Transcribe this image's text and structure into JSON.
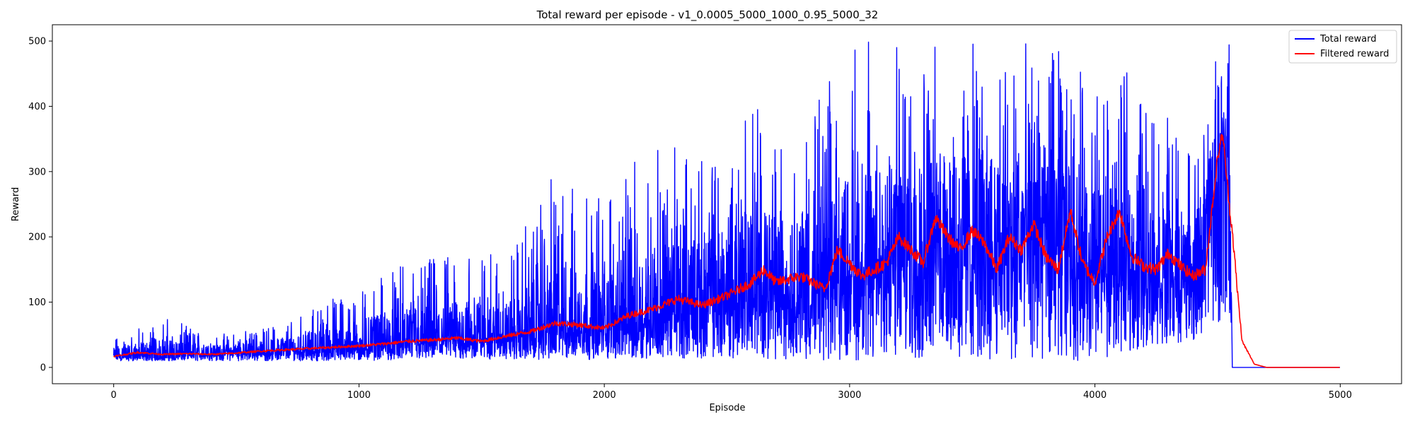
{
  "chart_data": {
    "type": "line",
    "title": "Total reward per episode - v1_0.0005_5000_1000_0.95_5000_32",
    "xlabel": "Episode",
    "ylabel": "Reward",
    "xlim": [
      -250,
      5250
    ],
    "ylim": [
      -25,
      525
    ],
    "xticks": [
      0,
      1000,
      2000,
      3000,
      4000,
      5000
    ],
    "yticks": [
      0,
      100,
      200,
      300,
      400,
      500
    ],
    "grid": false,
    "legend_position": "top-right",
    "episodes_total": 5000,
    "series": [
      {
        "name": "Total reward",
        "color": "#0000ff",
        "note": "noisy per-episode reward; approximate envelope by episode",
        "x": [
          0,
          200,
          400,
          600,
          800,
          1000,
          1200,
          1400,
          1600,
          1800,
          2000,
          2200,
          2400,
          2600,
          2800,
          3000,
          3200,
          3400,
          3600,
          3800,
          4000,
          4200,
          4400,
          4500,
          4550,
          4560,
          5000
        ],
        "mean": [
          18,
          20,
          22,
          25,
          28,
          32,
          38,
          45,
          48,
          62,
          65,
          82,
          100,
          120,
          115,
          150,
          180,
          210,
          180,
          230,
          150,
          160,
          140,
          300,
          330,
          0,
          0
        ],
        "peak": [
          45,
          78,
          50,
          60,
          90,
          130,
          160,
          180,
          170,
          300,
          265,
          350,
          325,
          420,
          360,
          500,
          500,
          500,
          500,
          500,
          445,
          455,
          315,
          500,
          500,
          0,
          0
        ],
        "low": [
          10,
          10,
          10,
          10,
          10,
          10,
          12,
          12,
          12,
          12,
          12,
          14,
          14,
          14,
          12,
          10,
          10,
          10,
          10,
          10,
          10,
          30,
          40,
          60,
          60,
          0,
          0
        ]
      },
      {
        "name": "Filtered reward",
        "color": "#ff0000",
        "x": [
          0,
          100,
          200,
          300,
          400,
          500,
          600,
          700,
          800,
          900,
          1000,
          1100,
          1200,
          1300,
          1400,
          1500,
          1600,
          1700,
          1800,
          1900,
          2000,
          2100,
          2200,
          2300,
          2400,
          2500,
          2600,
          2650,
          2700,
          2800,
          2900,
          2950,
          3000,
          3050,
          3100,
          3150,
          3200,
          3250,
          3300,
          3350,
          3400,
          3450,
          3500,
          3550,
          3600,
          3650,
          3700,
          3750,
          3800,
          3850,
          3900,
          3950,
          4000,
          4050,
          4100,
          4150,
          4200,
          4250,
          4300,
          4350,
          4400,
          4450,
          4500,
          4520,
          4540,
          4550,
          4560,
          4580,
          4600,
          4650,
          4700,
          5000
        ],
        "y": [
          17,
          23,
          20,
          21,
          20,
          22,
          25,
          27,
          29,
          31,
          33,
          36,
          40,
          42,
          45,
          40,
          48,
          55,
          68,
          65,
          60,
          80,
          90,
          105,
          95,
          110,
          130,
          150,
          130,
          140,
          120,
          180,
          160,
          140,
          150,
          160,
          200,
          180,
          160,
          230,
          200,
          180,
          210,
          190,
          150,
          200,
          180,
          220,
          170,
          150,
          240,
          160,
          130,
          200,
          240,
          170,
          155,
          150,
          175,
          155,
          140,
          150,
          320,
          360,
          280,
          240,
          210,
          120,
          40,
          5,
          0,
          0
        ]
      }
    ]
  }
}
